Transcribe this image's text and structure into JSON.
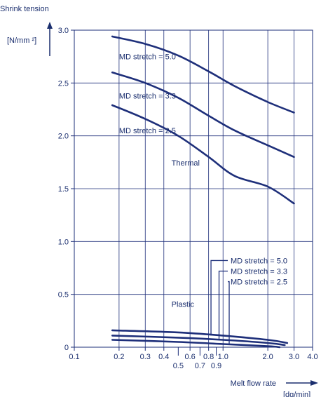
{
  "chart_data": {
    "type": "line",
    "ylabel_title": "Shrink tension",
    "ylabel_unit": "[N/mm ²]",
    "xlabel": "Melt flow rate",
    "xlabel_unit": "[dg/min]",
    "x_scale": "log",
    "xlim": [
      0.1,
      4.0
    ],
    "ylim": [
      0,
      3.0
    ],
    "grid": true,
    "yticks": [
      {
        "v": 0,
        "label": "0"
      },
      {
        "v": 0.5,
        "label": "0.5"
      },
      {
        "v": 1.0,
        "label": "1.0"
      },
      {
        "v": 1.5,
        "label": "1.5"
      },
      {
        "v": 2.0,
        "label": "2.0"
      },
      {
        "v": 2.5,
        "label": "2.5"
      },
      {
        "v": 3.0,
        "label": "3.0"
      }
    ],
    "xticks_upper": [
      {
        "v": 0.1,
        "label": "0.1"
      },
      {
        "v": 0.2,
        "label": "0.2"
      },
      {
        "v": 0.3,
        "label": "0.3"
      },
      {
        "v": 0.4,
        "label": "0.4"
      },
      {
        "v": 0.6,
        "label": "0.6"
      },
      {
        "v": 0.8,
        "label": "0.8"
      },
      {
        "v": 1.0,
        "label": "1.0"
      },
      {
        "v": 2.0,
        "label": "2.0"
      },
      {
        "v": 3.0,
        "label": "3.0"
      },
      {
        "v": 4.0,
        "label": "4.0"
      }
    ],
    "xticks_lower": [
      {
        "v": 0.5,
        "label": "0.5"
      },
      {
        "v": 0.7,
        "label": "0.7"
      },
      {
        "v": 0.9,
        "label": "0.9"
      }
    ],
    "xgrid": [
      0.2,
      0.3,
      0.4,
      0.6,
      0.8,
      1.0,
      2.0,
      3.0
    ],
    "minor_xticks": [
      0.5,
      0.7,
      0.9
    ],
    "group_labels": [
      {
        "text": "Thermal",
        "x": 0.45,
        "y": 1.72
      },
      {
        "text": "Plastic",
        "x": 0.45,
        "y": 0.38
      }
    ],
    "series": [
      {
        "group": "Thermal",
        "name": "MD stretch = 5.0",
        "label_pos": {
          "x": 0.2,
          "y": 2.75
        },
        "x": [
          0.18,
          0.3,
          0.5,
          0.8,
          1.2,
          2.0,
          3.0
        ],
        "y": [
          2.94,
          2.87,
          2.76,
          2.61,
          2.47,
          2.32,
          2.22
        ]
      },
      {
        "group": "Thermal",
        "name": "MD stretch = 3.3",
        "label_pos": {
          "x": 0.2,
          "y": 2.38
        },
        "x": [
          0.18,
          0.3,
          0.5,
          0.8,
          1.2,
          2.0,
          3.0
        ],
        "y": [
          2.6,
          2.5,
          2.36,
          2.19,
          2.05,
          1.91,
          1.8
        ]
      },
      {
        "group": "Thermal",
        "name": "MD stretch = 2.5",
        "label_pos": {
          "x": 0.2,
          "y": 2.05
        },
        "x": [
          0.18,
          0.3,
          0.5,
          0.8,
          1.2,
          2.0,
          3.0
        ],
        "y": [
          2.29,
          2.16,
          2.0,
          1.8,
          1.62,
          1.52,
          1.36
        ]
      },
      {
        "group": "Plastic",
        "name": "MD stretch = 5.0",
        "label_pos": {
          "x": 1.1,
          "y": 0.82
        },
        "x": [
          0.18,
          0.5,
          1.0,
          2.0,
          2.7
        ],
        "y": [
          0.16,
          0.14,
          0.11,
          0.07,
          0.04
        ]
      },
      {
        "group": "Plastic",
        "name": "MD stretch = 3.3",
        "label_pos": {
          "x": 1.1,
          "y": 0.72
        },
        "x": [
          0.18,
          0.5,
          1.0,
          2.0,
          2.6
        ],
        "y": [
          0.11,
          0.09,
          0.07,
          0.04,
          0.02
        ]
      },
      {
        "group": "Plastic",
        "name": "MD stretch = 2.5",
        "label_pos": {
          "x": 1.1,
          "y": 0.62
        },
        "x": [
          0.18,
          0.5,
          1.0,
          2.0,
          2.4
        ],
        "y": [
          0.07,
          0.05,
          0.03,
          0.01,
          0.0
        ]
      }
    ],
    "leaders": [
      {
        "anchor_x": 0.83,
        "anchor_y": 0.11,
        "label_index": 3
      },
      {
        "anchor_x": 0.94,
        "anchor_y": 0.065,
        "label_index": 4
      },
      {
        "anchor_x": 1.1,
        "anchor_y": 0.03,
        "label_index": 5
      }
    ]
  },
  "colors": {
    "ink": "#1a2e6e",
    "line": "#1e2f7a",
    "grid": "#1e2f7a"
  }
}
